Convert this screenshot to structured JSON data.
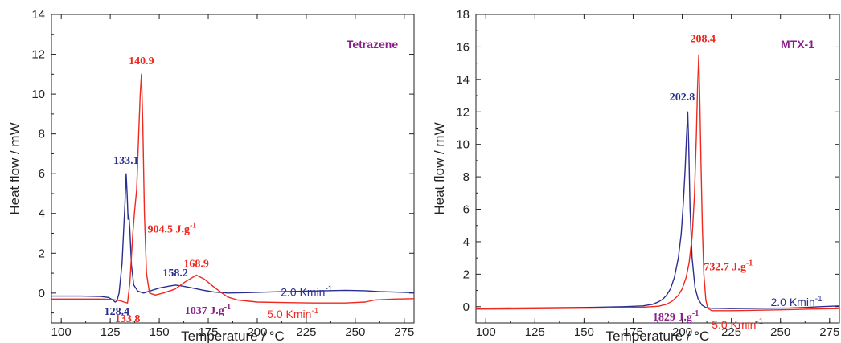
{
  "colors": {
    "blue": "#2b2f8f",
    "red": "#f0281e",
    "purple": "#8b1e8b",
    "axis": "#222222"
  },
  "chart_data": [
    {
      "type": "line",
      "title": "Tetrazene",
      "xlabel": "Temperature / °C",
      "ylabel": "Heat flow / mW",
      "xlim": [
        95,
        280
      ],
      "ylim": [
        -1.5,
        14
      ],
      "xticks": [
        100,
        125,
        150,
        175,
        200,
        225,
        250,
        275
      ],
      "yticks": [
        0,
        2,
        4,
        6,
        8,
        10,
        12,
        14
      ],
      "series": [
        {
          "name": "2.0 Kmin-1",
          "color": "#2b2f8f",
          "x": [
            95,
            110,
            120,
            124,
            126,
            127.5,
            128.4,
            129.5,
            131,
            132.5,
            133.1,
            133.6,
            134.1,
            134.5,
            135,
            135.8,
            137,
            139,
            142,
            145,
            150,
            155,
            158.2,
            162,
            167,
            172,
            178,
            185,
            195,
            205,
            215,
            225,
            235,
            245,
            255,
            262,
            270,
            280
          ],
          "y": [
            -0.15,
            -0.15,
            -0.17,
            -0.22,
            -0.33,
            -0.45,
            -0.4,
            0.0,
            1.5,
            4.5,
            6.0,
            5.0,
            3.7,
            3.9,
            3.2,
            1.4,
            0.4,
            0.1,
            0.0,
            0.1,
            0.25,
            0.35,
            0.4,
            0.35,
            0.25,
            0.15,
            0.05,
            0.0,
            0.02,
            0.05,
            0.08,
            0.1,
            0.12,
            0.14,
            0.12,
            0.08,
            0.05,
            0.02
          ]
        },
        {
          "name": "5.0 Kmin-1",
          "color": "#f0281e",
          "x": [
            95,
            110,
            120,
            126,
            130,
            132,
            133.8,
            135,
            136.5,
            137.5,
            138.5,
            139.5,
            140.3,
            140.9,
            141.6,
            142.4,
            143.5,
            145,
            148,
            152,
            158,
            163,
            168.9,
            173,
            178,
            182,
            185,
            190,
            200,
            215,
            230,
            245,
            255,
            260,
            270,
            280
          ],
          "y": [
            -0.3,
            -0.3,
            -0.3,
            -0.32,
            -0.38,
            -0.45,
            -0.5,
            0.5,
            3.0,
            4.2,
            5.2,
            8.0,
            10.0,
            11.0,
            8.5,
            4.0,
            1.0,
            0.0,
            -0.1,
            0.0,
            0.2,
            0.55,
            0.9,
            0.7,
            0.3,
            0.0,
            -0.2,
            -0.35,
            -0.45,
            -0.48,
            -0.5,
            -0.5,
            -0.45,
            -0.35,
            -0.3,
            -0.28
          ]
        }
      ],
      "annotations": [
        {
          "text": "133.1",
          "x": 133.1,
          "y": 6.5,
          "color": "#2b2f8f"
        },
        {
          "text": "140.9",
          "x": 140.9,
          "y": 11.5,
          "color": "#f0281e"
        },
        {
          "text": "128.4",
          "x": 128.4,
          "y": -1.1,
          "color": "#2b2f8f"
        },
        {
          "text": "133.8",
          "x": 133.8,
          "y": -1.45,
          "color": "#f0281e"
        },
        {
          "text": "158.2",
          "x": 158.2,
          "y": 0.85,
          "color": "#2b2f8f"
        },
        {
          "text": "168.9",
          "x": 168.9,
          "y": 1.3,
          "color": "#f0281e"
        }
      ],
      "enthalpy_labels": [
        {
          "value": "904.5 J.g",
          "exp": "-1",
          "x": 144,
          "y": 3.05,
          "color": "#f0281e"
        },
        {
          "value": "1037 J.g",
          "exp": "-1",
          "x": 163,
          "y": -1.05,
          "color": "#8b1e8b"
        }
      ],
      "rate_labels": [
        {
          "value": "2.0 Kmin",
          "exp": "-1",
          "x": 212,
          "y": -0.15,
          "color": "#2b2f8f"
        },
        {
          "value": "5.0 Kmin",
          "exp": "-1",
          "x": 205,
          "y": -1.25,
          "color": "#f0281e"
        }
      ],
      "grid": false,
      "legend": "none"
    },
    {
      "type": "line",
      "title": "MTX-1",
      "xlabel": "Temperature / °C",
      "ylabel": "Heat flow / mW",
      "xlim": [
        95,
        280
      ],
      "ylim": [
        -1,
        18
      ],
      "xticks": [
        100,
        125,
        150,
        175,
        200,
        225,
        250,
        275
      ],
      "yticks": [
        0,
        2,
        4,
        6,
        8,
        10,
        12,
        14,
        16,
        18
      ],
      "series": [
        {
          "name": "2.0 Kmin-1",
          "color": "#2b2f8f",
          "x": [
            95,
            120,
            150,
            170,
            180,
            185,
            188,
            190,
            192,
            194,
            196,
            198,
            199.5,
            200.5,
            201.5,
            202.2,
            202.8,
            203.3,
            204,
            205,
            206.5,
            208,
            210,
            212,
            215,
            225,
            240,
            255,
            262,
            270,
            280
          ],
          "y": [
            -0.1,
            -0.08,
            -0.05,
            0.0,
            0.05,
            0.15,
            0.3,
            0.45,
            0.7,
            1.1,
            1.8,
            3.0,
            4.5,
            6.3,
            8.5,
            10.5,
            12.0,
            10.0,
            6.0,
            3.0,
            1.2,
            0.5,
            0.1,
            -0.05,
            -0.1,
            -0.12,
            -0.1,
            -0.08,
            -0.05,
            0.0,
            0.05
          ]
        },
        {
          "name": "5.0 Kmin-1",
          "color": "#f0281e",
          "x": [
            95,
            130,
            160,
            180,
            188,
            192,
            195,
            198,
            200,
            202,
            203.5,
            205,
            206.2,
            207.2,
            207.8,
            208.4,
            208.9,
            209.5,
            210.2,
            211,
            212,
            213,
            215,
            225,
            240,
            255,
            265,
            280
          ],
          "y": [
            -0.15,
            -0.12,
            -0.08,
            -0.03,
            0.03,
            0.15,
            0.35,
            0.7,
            1.1,
            1.8,
            2.7,
            4.3,
            6.8,
            10.5,
            13.5,
            15.5,
            13.0,
            9.0,
            5.0,
            2.0,
            0.4,
            -0.1,
            -0.25,
            -0.25,
            -0.22,
            -0.18,
            -0.15,
            -0.12
          ]
        }
      ],
      "annotations": [
        {
          "text": "202.8",
          "x": 200,
          "y": 12.7,
          "color": "#2b2f8f"
        },
        {
          "text": "208.4",
          "x": 210.5,
          "y": 16.3,
          "color": "#f0281e"
        }
      ],
      "enthalpy_labels": [
        {
          "value": "732.7 J.g",
          "exp": "-1",
          "x": 211,
          "y": 2.25,
          "color": "#f0281e"
        },
        {
          "value": "1829 J.g",
          "exp": "-1",
          "x": 185,
          "y": -0.85,
          "color": "#8b1e8b"
        }
      ],
      "rate_labels": [
        {
          "value": "2.0 Kmin",
          "exp": "-1",
          "x": 245,
          "y": 0.05,
          "color": "#2b2f8f"
        },
        {
          "value": "5.0 Kmin",
          "exp": "-1",
          "x": 215,
          "y": -1.35,
          "color": "#f0281e"
        }
      ],
      "grid": false,
      "legend": "none"
    }
  ]
}
